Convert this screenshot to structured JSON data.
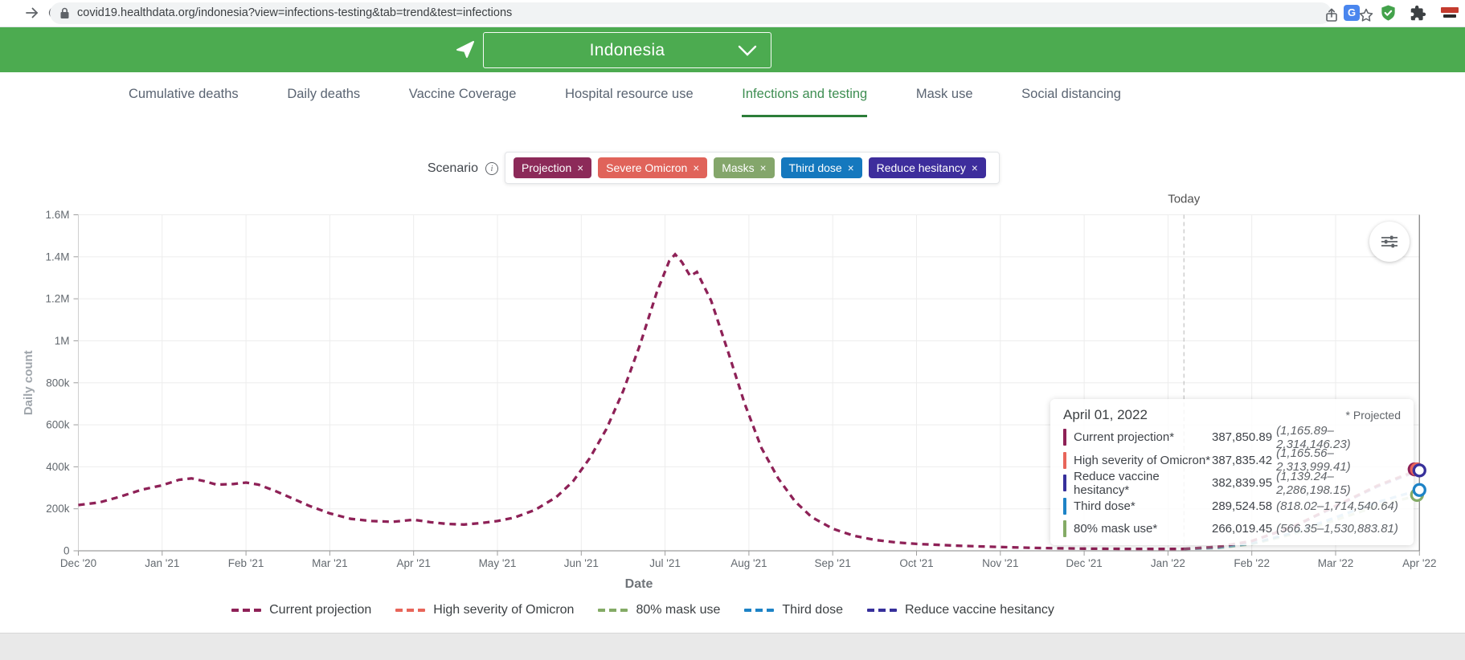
{
  "browser": {
    "url": "covid19.healthdata.org/indonesia?view=infections-testing&tab=trend&test=infections"
  },
  "header": {
    "country": "Indonesia"
  },
  "tabs": [
    {
      "label": "Cumulative deaths"
    },
    {
      "label": "Daily deaths"
    },
    {
      "label": "Vaccine Coverage"
    },
    {
      "label": "Hospital resource use"
    },
    {
      "label": "Infections and testing"
    },
    {
      "label": "Mask use"
    },
    {
      "label": "Social distancing"
    }
  ],
  "scenario": {
    "label": "Scenario",
    "info_glyph": "i",
    "close_glyph": "×",
    "tags": [
      {
        "label": "Projection",
        "color": "#8c2a59"
      },
      {
        "label": "Severe Omicron",
        "color": "#e0635a"
      },
      {
        "label": "Masks",
        "color": "#84a66b"
      },
      {
        "label": "Third dose",
        "color": "#1478be"
      },
      {
        "label": "Reduce hesitancy",
        "color": "#3d2d9c"
      }
    ]
  },
  "chart_data": {
    "type": "line",
    "title": "",
    "xlabel": "Date",
    "ylabel": "Daily count",
    "ylim": [
      0,
      1600000
    ],
    "grid": true,
    "x_unit": "months since Dec 2020",
    "x_tick_labels": [
      "Dec '20",
      "Jan '21",
      "Feb '21",
      "Mar '21",
      "Apr '21",
      "May '21",
      "Jun '21",
      "Jul '21",
      "Aug '21",
      "Sep '21",
      "Oct '21",
      "Nov '21",
      "Dec '21",
      "Jan '22",
      "Feb '22",
      "Mar '22",
      "Apr '22"
    ],
    "y_tick_labels": [
      "0",
      "200k",
      "400k",
      "600k",
      "800k",
      "1M",
      "1.2M",
      "1.4M",
      "1.6M"
    ],
    "today_x": 13.19,
    "today_label": "Today",
    "hover_x": 16,
    "series": [
      {
        "name": "Current projection (observed)",
        "color": "#8e2157",
        "projected": false,
        "points": [
          [
            0,
            218000
          ],
          [
            0.25,
            230000
          ],
          [
            0.5,
            258000
          ],
          [
            0.75,
            290000
          ],
          [
            1,
            312000
          ],
          [
            1.2,
            338000
          ],
          [
            1.35,
            345000
          ],
          [
            1.5,
            332000
          ],
          [
            1.65,
            315000
          ],
          [
            1.85,
            318000
          ],
          [
            2,
            325000
          ],
          [
            2.15,
            315000
          ],
          [
            2.35,
            285000
          ],
          [
            2.55,
            250000
          ],
          [
            2.75,
            215000
          ],
          [
            3,
            178000
          ],
          [
            3.25,
            152000
          ],
          [
            3.5,
            142000
          ],
          [
            3.75,
            138000
          ],
          [
            4,
            148000
          ],
          [
            4.2,
            136000
          ],
          [
            4.4,
            128000
          ],
          [
            4.6,
            125000
          ],
          [
            4.8,
            132000
          ],
          [
            5,
            142000
          ],
          [
            5.2,
            158000
          ],
          [
            5.45,
            195000
          ],
          [
            5.7,
            255000
          ],
          [
            5.9,
            330000
          ],
          [
            6.1,
            440000
          ],
          [
            6.3,
            580000
          ],
          [
            6.5,
            760000
          ],
          [
            6.7,
            980000
          ],
          [
            6.9,
            1230000
          ],
          [
            7.05,
            1380000
          ],
          [
            7.12,
            1412000
          ],
          [
            7.2,
            1375000
          ],
          [
            7.3,
            1308000
          ],
          [
            7.38,
            1328000
          ],
          [
            7.55,
            1190000
          ],
          [
            7.75,
            950000
          ],
          [
            7.95,
            700000
          ],
          [
            8.15,
            490000
          ],
          [
            8.35,
            345000
          ],
          [
            8.55,
            235000
          ],
          [
            8.75,
            160000
          ],
          [
            9,
            105000
          ],
          [
            9.25,
            72000
          ],
          [
            9.5,
            52000
          ],
          [
            9.75,
            40000
          ],
          [
            10,
            33000
          ],
          [
            10.5,
            24000
          ],
          [
            11,
            18000
          ],
          [
            11.5,
            13000
          ],
          [
            12,
            10500
          ],
          [
            12.5,
            9200
          ],
          [
            13,
            8800
          ],
          [
            13.19,
            8800
          ]
        ]
      },
      {
        "name": "80% mask use",
        "color": "#84ab66",
        "projected": true,
        "points": [
          [
            13.19,
            8600
          ],
          [
            13.6,
            13300
          ],
          [
            14,
            31900
          ],
          [
            14.5,
            79800
          ],
          [
            15,
            146300
          ],
          [
            15.5,
            212800
          ],
          [
            16,
            266019.45
          ]
        ]
      },
      {
        "name": "Third dose",
        "color": "#1e83c6",
        "projected": true,
        "points": [
          [
            13.19,
            8700
          ],
          [
            13.6,
            14500
          ],
          [
            14,
            34700
          ],
          [
            14.5,
            86900
          ],
          [
            15,
            159200
          ],
          [
            15.5,
            231600
          ],
          [
            16,
            289524.58
          ]
        ]
      },
      {
        "name": "Reduce vaccine hesitancy",
        "color": "#37309b",
        "projected": true,
        "points": [
          [
            13.19,
            8800
          ],
          [
            13.6,
            19100
          ],
          [
            14,
            45900
          ],
          [
            14.5,
            114900
          ],
          [
            15,
            210600
          ],
          [
            15.5,
            306300
          ],
          [
            16,
            382839.95
          ]
        ]
      },
      {
        "name": "High severity of Omicron",
        "color": "#e8655a",
        "projected": true,
        "points": [
          [
            13.19,
            8900
          ],
          [
            13.6,
            19600
          ],
          [
            14,
            47000
          ],
          [
            14.5,
            117000
          ],
          [
            15,
            214000
          ],
          [
            15.5,
            311000
          ],
          [
            16,
            387835.42
          ]
        ]
      },
      {
        "name": "Current projection",
        "color": "#8e2157",
        "projected": true,
        "points": [
          [
            13.19,
            8900
          ],
          [
            13.6,
            19400
          ],
          [
            14,
            46500
          ],
          [
            14.5,
            116400
          ],
          [
            15,
            213300
          ],
          [
            15.5,
            310300
          ],
          [
            16,
            387850.89
          ]
        ]
      }
    ],
    "end_markers": [
      {
        "name": "Current projection",
        "color": "#8e2157",
        "value": 387850.89,
        "dx": -6
      },
      {
        "name": "High severity of Omicron",
        "color": "#e8655a",
        "value": 387835.42,
        "dx": -3
      },
      {
        "name": "Reduce vaccine hesitancy",
        "color": "#37309b",
        "value": 382839.95,
        "dx": 0
      },
      {
        "name": "80% mask use",
        "color": "#84ab66",
        "value": 266019.45,
        "dx": -3
      },
      {
        "name": "Third dose",
        "color": "#1e83c6",
        "value": 289524.58,
        "dx": 0
      }
    ]
  },
  "tooltip": {
    "date": "April 01, 2022",
    "note": "* Projected",
    "rows": [
      {
        "label": "Current projection*",
        "value": "387,850.89",
        "range": "(1,165.89–2,314,146.23)",
        "color": "#8e2157"
      },
      {
        "label": "High severity of Omicron*",
        "value": "387,835.42",
        "range": "(1,165.56–2,313,999.41)",
        "color": "#e8655a"
      },
      {
        "label": "Reduce vaccine hesitancy*",
        "value": "382,839.95",
        "range": "(1,139.24–2,286,198.15)",
        "color": "#37309b"
      },
      {
        "label": "Third dose*",
        "value": "289,524.58",
        "range": "(818.02–1,714,540.64)",
        "color": "#1e83c6"
      },
      {
        "label": "80% mask use*",
        "value": "266,019.45",
        "range": "(566.35–1,530,883.81)",
        "color": "#84ab66"
      }
    ]
  },
  "legend": [
    {
      "label": "Current projection",
      "color": "#8e2157"
    },
    {
      "label": "High severity of Omicron",
      "color": "#e8655a"
    },
    {
      "label": "80% mask use",
      "color": "#84ab66"
    },
    {
      "label": "Third dose",
      "color": "#1e83c6"
    },
    {
      "label": "Reduce vaccine hesitancy",
      "color": "#37309b"
    }
  ]
}
